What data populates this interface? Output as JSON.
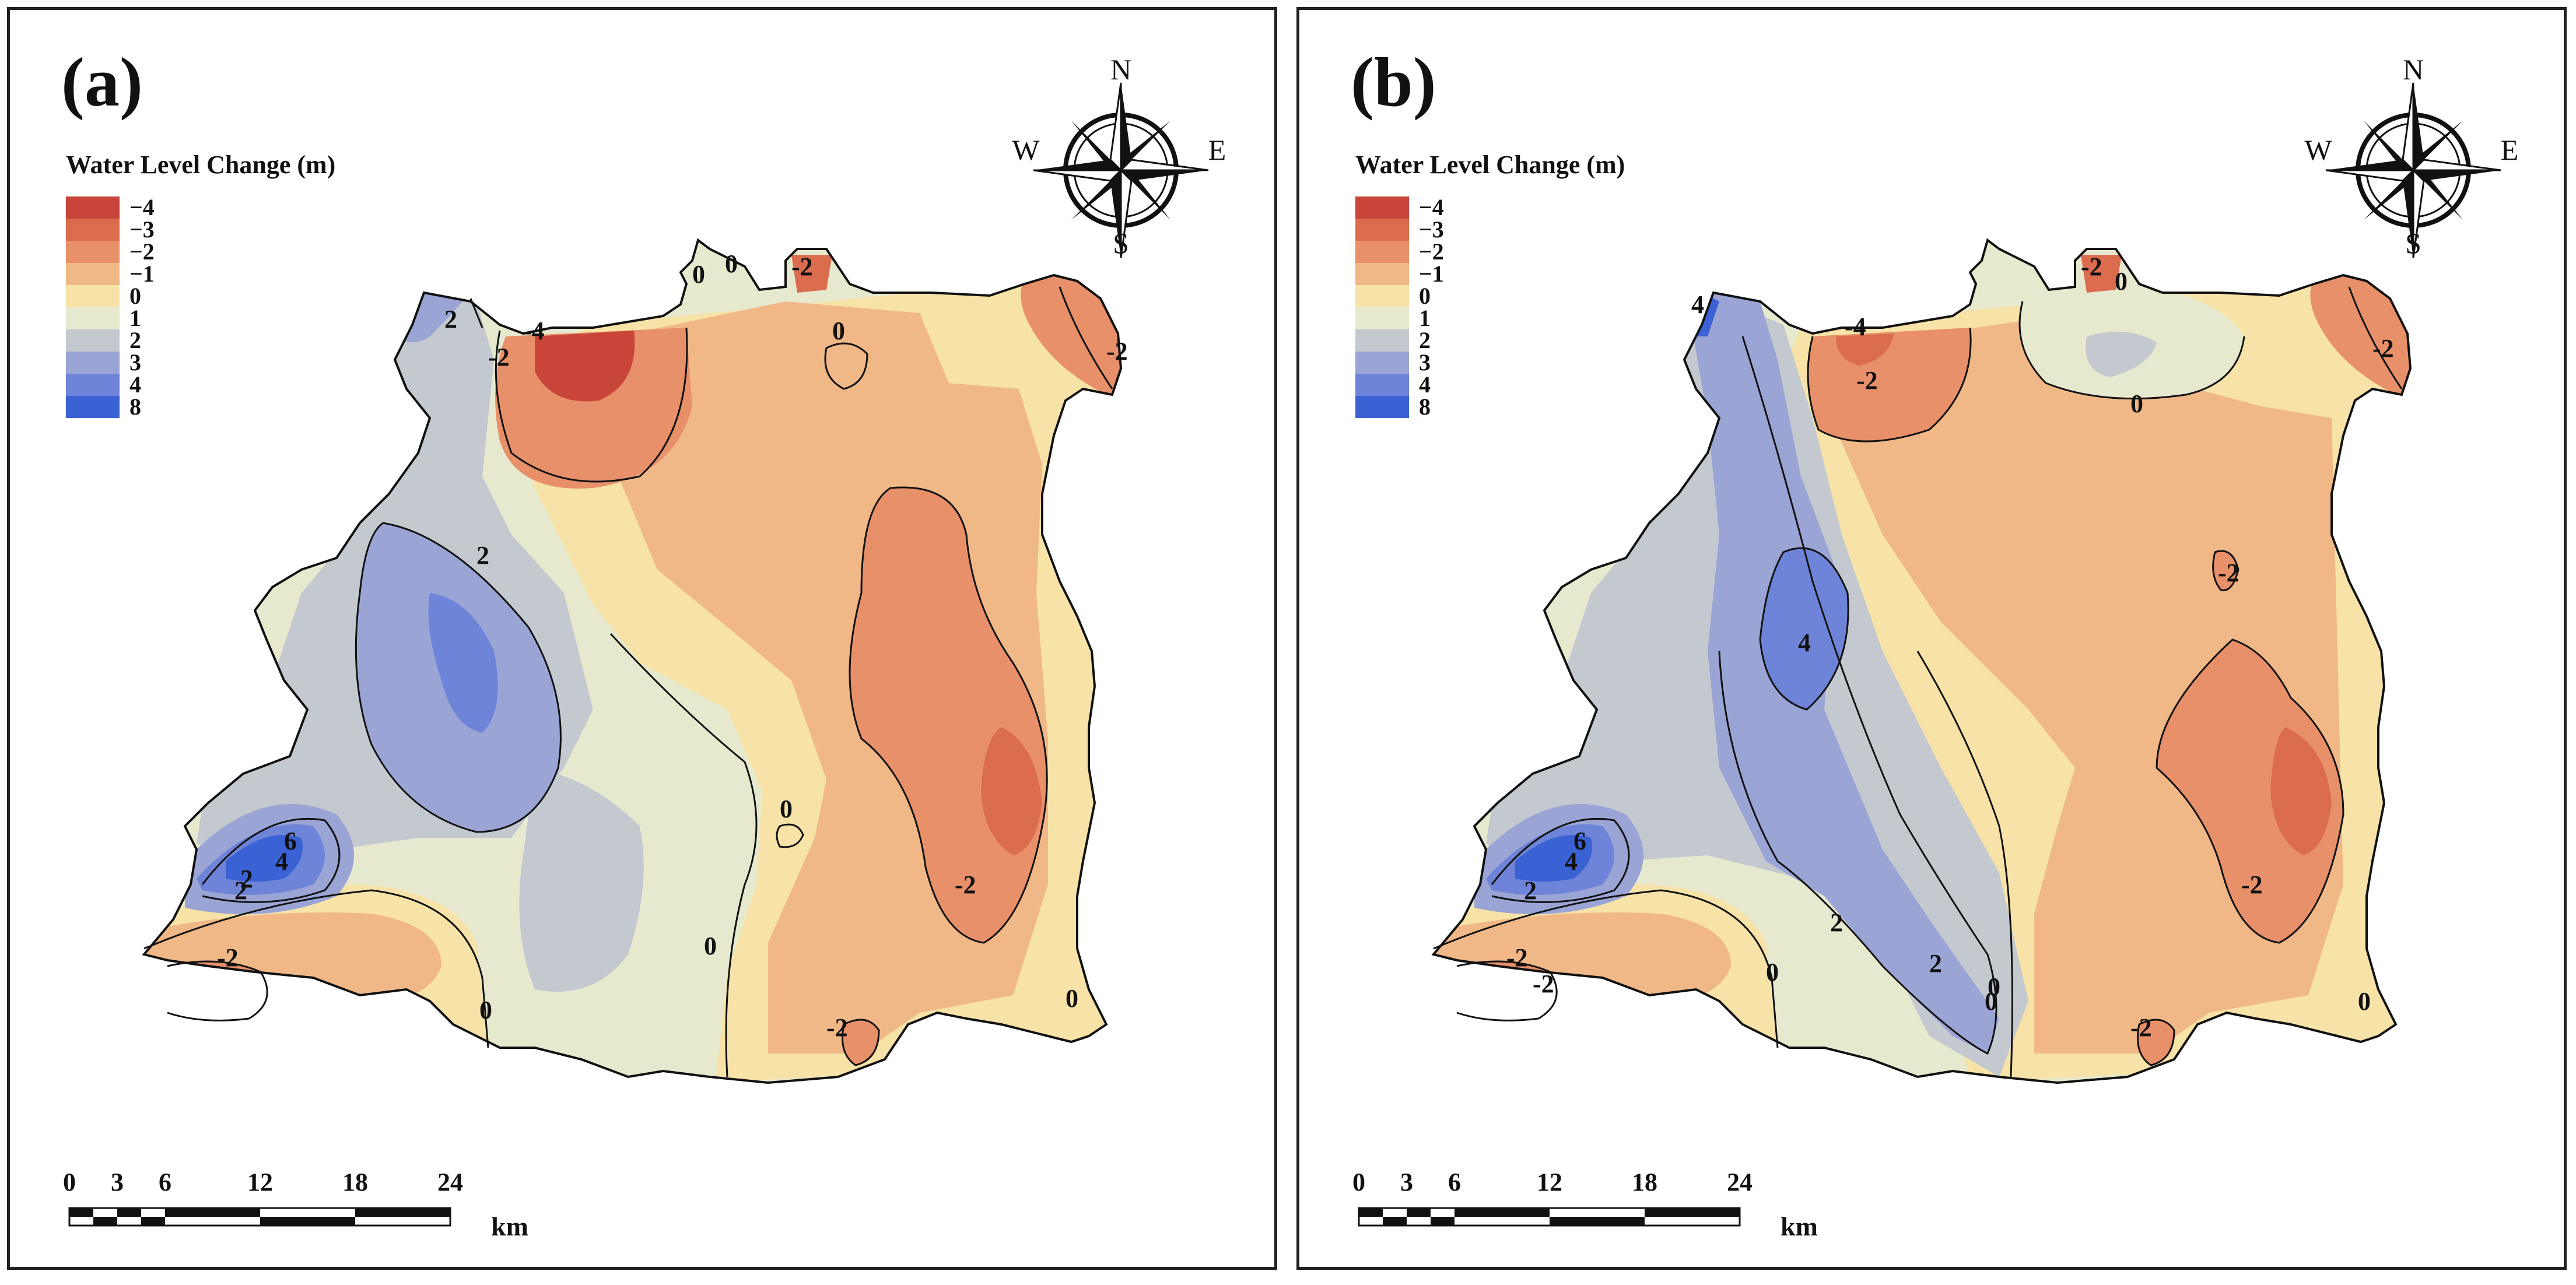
{
  "legend": {
    "title": "Water Level Change (m)",
    "classes": [
      {
        "label": "−4",
        "color": "#c9453a"
      },
      {
        "label": "−3",
        "color": "#db6c4e"
      },
      {
        "label": "−2",
        "color": "#e8906a"
      },
      {
        "label": "−1",
        "color": "#f1b887"
      },
      {
        "label": "0",
        "color": "#f7e3a8"
      },
      {
        "label": "1",
        "color": "#e7e9cf"
      },
      {
        "label": "2",
        "color": "#c4c8cf"
      },
      {
        "label": "3",
        "color": "#9aa5d6"
      },
      {
        "label": "4",
        "color": "#6e84d8"
      },
      {
        "label": "8",
        "color": "#3a62d4"
      }
    ]
  },
  "compass": {
    "n": "N",
    "e": "E",
    "s": "S",
    "w": "W"
  },
  "scalebar": {
    "ticks": [
      "0",
      "3",
      "6",
      "12",
      "18",
      "24"
    ],
    "unit": "km"
  },
  "panels": [
    {
      "label": "(a)",
      "contour_labels": [
        "-4",
        "-2",
        "2",
        "-2",
        "0",
        "0",
        "2",
        "2",
        "-2",
        "0",
        "-2",
        "0",
        "-2",
        "0",
        "2",
        "4",
        "6",
        "-2",
        "0",
        "0"
      ]
    },
    {
      "label": "(b)",
      "contour_labels": [
        "-4",
        "4",
        "-2",
        "-2",
        "0",
        "-2",
        "-2",
        "-2",
        "0",
        "-2",
        "0",
        "4",
        "2",
        "2",
        "0",
        "0",
        "-2",
        "2",
        "4",
        "6",
        "-2",
        "0"
      ]
    }
  ]
}
